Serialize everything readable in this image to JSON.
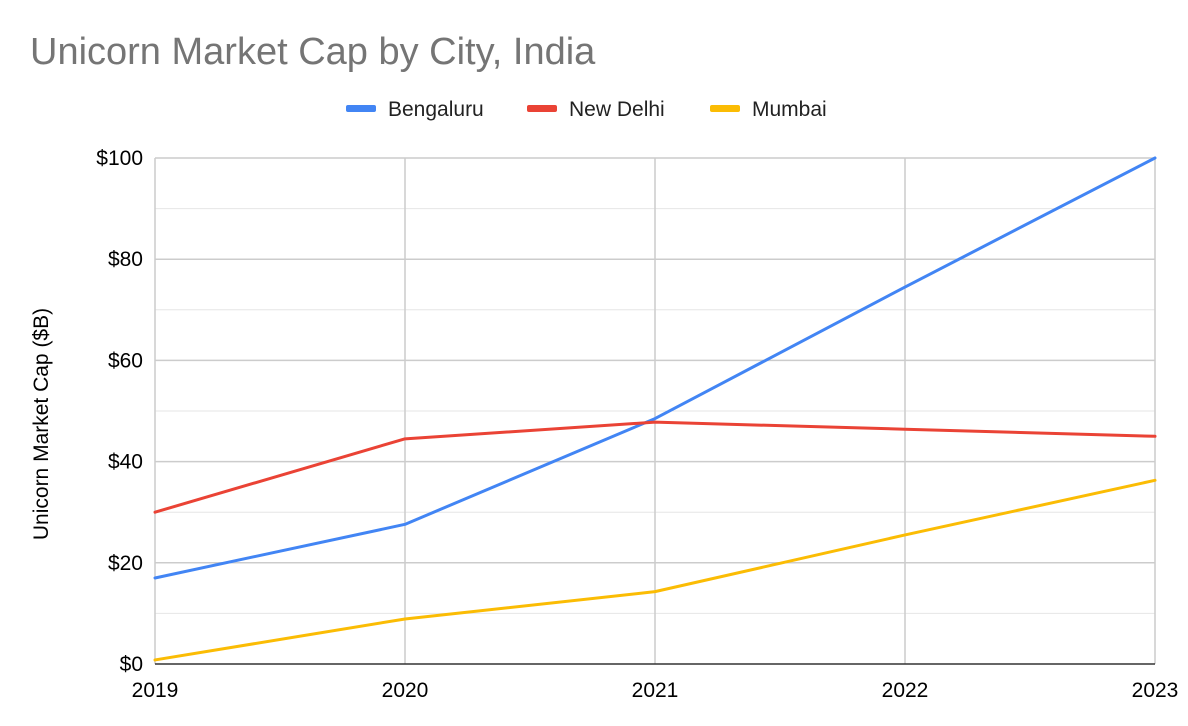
{
  "chart_data": {
    "type": "line",
    "title": "Unicorn Market Cap by City, India",
    "xlabel": "",
    "ylabel": "Unicorn Market Cap ($B)",
    "x": [
      "2019",
      "2020",
      "2021",
      "2022",
      "2023"
    ],
    "ylim": [
      0,
      100
    ],
    "y_ticks": [
      0,
      20,
      40,
      60,
      80,
      100
    ],
    "y_tick_labels": [
      "$0",
      "$20",
      "$40",
      "$60",
      "$80",
      "$100"
    ],
    "grid": true,
    "legend_position": "top",
    "series": [
      {
        "name": "Bengaluru",
        "color": "#4285f4",
        "values": [
          17,
          27.6,
          48.5,
          74.5,
          100
        ]
      },
      {
        "name": "New Delhi",
        "color": "#ea4335",
        "values": [
          30,
          44.5,
          47.8,
          46.4,
          45
        ]
      },
      {
        "name": "Mumbai",
        "color": "#fbbc04",
        "values": [
          0.8,
          8.9,
          14.3,
          25.5,
          36.3
        ]
      }
    ]
  }
}
